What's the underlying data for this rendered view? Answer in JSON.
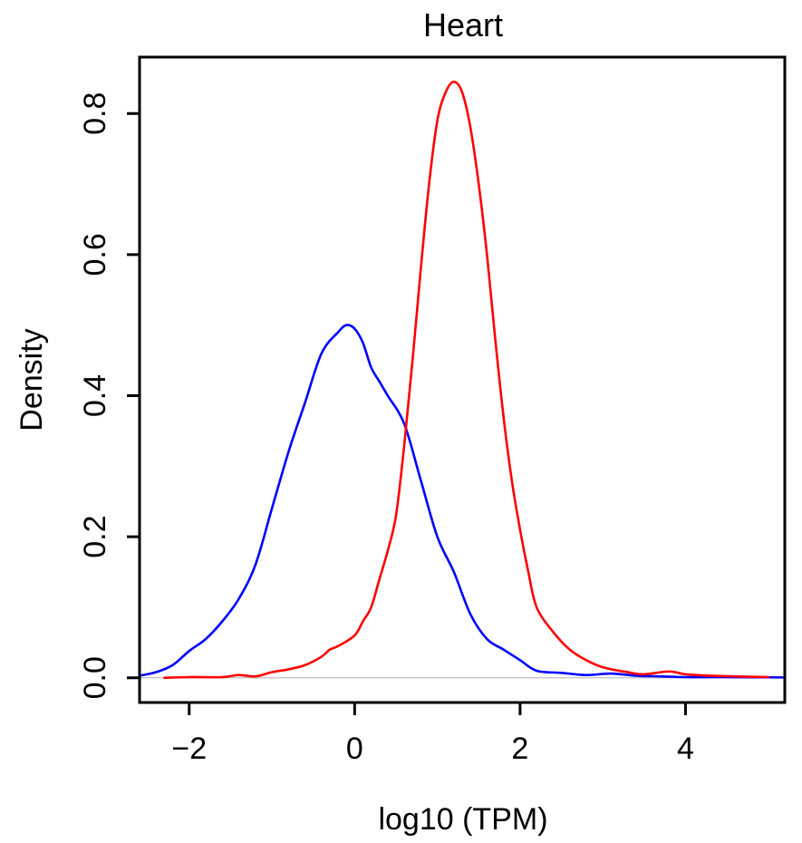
{
  "chart_data": {
    "type": "line",
    "title": "Heart",
    "xlabel": "log10 (TPM)",
    "ylabel": "Density",
    "xlim": [
      -2.6,
      5.2
    ],
    "ylim": [
      -0.035,
      0.88
    ],
    "xticks": [
      -2,
      0,
      2,
      4
    ],
    "xtick_labels": [
      "−2",
      "0",
      "2",
      "4"
    ],
    "yticks": [
      0.0,
      0.2,
      0.4,
      0.6,
      0.8
    ],
    "ytick_labels": [
      "0.0",
      "0.2",
      "0.4",
      "0.6",
      "0.8"
    ],
    "baseline": 0,
    "grid": false,
    "legend": "none",
    "series": [
      {
        "name": "blue",
        "color": "#0000ff",
        "x": [
          -2.6,
          -2.4,
          -2.2,
          -2.0,
          -1.8,
          -1.6,
          -1.4,
          -1.2,
          -1.0,
          -0.8,
          -0.6,
          -0.4,
          -0.2,
          -0.1,
          0.0,
          0.1,
          0.2,
          0.3,
          0.4,
          0.6,
          0.8,
          1.0,
          1.2,
          1.4,
          1.6,
          1.8,
          2.0,
          2.2,
          2.5,
          2.8,
          3.1,
          3.4,
          3.7,
          4.0,
          4.4,
          4.8,
          5.2
        ],
        "y": [
          0.003,
          0.008,
          0.018,
          0.038,
          0.055,
          0.08,
          0.112,
          0.16,
          0.24,
          0.32,
          0.39,
          0.46,
          0.49,
          0.5,
          0.495,
          0.475,
          0.44,
          0.42,
          0.4,
          0.36,
          0.28,
          0.2,
          0.15,
          0.09,
          0.055,
          0.04,
          0.025,
          0.01,
          0.007,
          0.004,
          0.006,
          0.003,
          0.002,
          0.001,
          0.001,
          0.0008,
          0.0005
        ]
      },
      {
        "name": "red",
        "color": "#ff0000",
        "x": [
          -2.3,
          -2.0,
          -1.6,
          -1.4,
          -1.2,
          -1.0,
          -0.8,
          -0.6,
          -0.4,
          -0.3,
          -0.2,
          0.0,
          0.1,
          0.2,
          0.3,
          0.4,
          0.5,
          0.6,
          0.7,
          0.8,
          0.9,
          1.0,
          1.1,
          1.2,
          1.3,
          1.4,
          1.5,
          1.6,
          1.7,
          1.8,
          1.9,
          2.0,
          2.1,
          2.2,
          2.4,
          2.6,
          2.8,
          3.0,
          3.3,
          3.5,
          3.8,
          4.0,
          4.3,
          4.6,
          5.0
        ],
        "y": [
          0.0,
          0.001,
          0.001,
          0.004,
          0.002,
          0.008,
          0.012,
          0.018,
          0.03,
          0.04,
          0.045,
          0.06,
          0.08,
          0.1,
          0.14,
          0.18,
          0.23,
          0.33,
          0.45,
          0.58,
          0.7,
          0.79,
          0.83,
          0.845,
          0.83,
          0.78,
          0.7,
          0.6,
          0.48,
          0.37,
          0.28,
          0.21,
          0.15,
          0.1,
          0.065,
          0.04,
          0.025,
          0.015,
          0.008,
          0.005,
          0.009,
          0.005,
          0.003,
          0.002,
          0.001
        ]
      }
    ]
  }
}
